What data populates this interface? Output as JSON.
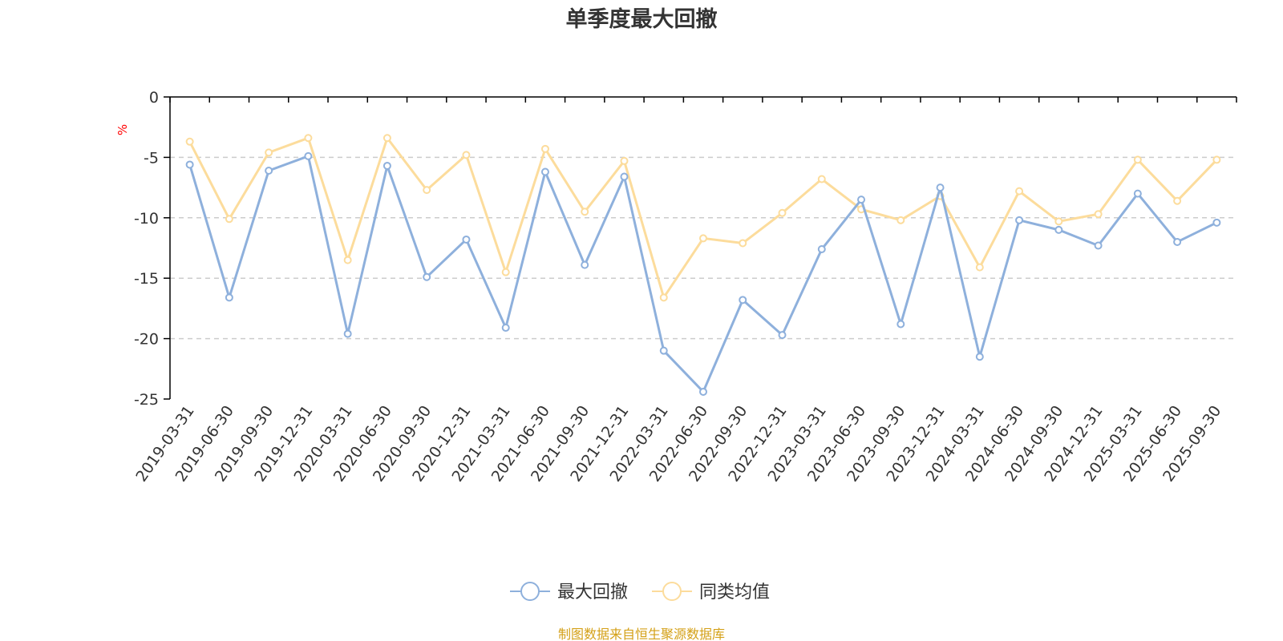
{
  "colors": {
    "series_max_drawdown": "#8eb0dc",
    "series_peer_avg": "#fcdc9c",
    "unit": "#ff0000",
    "source": "#d4a017",
    "grid": "#cccccc",
    "axis": "#000000"
  },
  "source_note": "制图数据来自恒生聚源数据库",
  "chart_data": {
    "type": "line",
    "title": "单季度最大回撤",
    "xlabel": "",
    "ylabel": "%",
    "ylim": [
      -25,
      0
    ],
    "yticks": [
      0,
      -5,
      -10,
      -15,
      -20,
      -25
    ],
    "grid": true,
    "legend_position": "bottom-center",
    "categories": [
      "2019-03-31",
      "2019-06-30",
      "2019-09-30",
      "2019-12-31",
      "2020-03-31",
      "2020-06-30",
      "2020-09-30",
      "2020-12-31",
      "2021-03-31",
      "2021-06-30",
      "2021-09-30",
      "2021-12-31",
      "2022-03-31",
      "2022-06-30",
      "2022-09-30",
      "2022-12-31",
      "2023-03-31",
      "2023-06-30",
      "2023-09-30",
      "2023-12-31",
      "2024-03-31",
      "2024-06-30",
      "2024-09-30",
      "2024-12-31",
      "2025-03-31",
      "2025-06-30",
      "2025-09-30"
    ],
    "series": [
      {
        "name": "最大回撤",
        "color_key": "series_max_drawdown",
        "values": [
          -5.6,
          -16.6,
          -6.1,
          -4.9,
          -19.6,
          -5.7,
          -14.9,
          -11.8,
          -19.1,
          -6.2,
          -13.9,
          -6.6,
          -21.0,
          -24.4,
          -16.8,
          -19.7,
          -12.6,
          -8.5,
          -18.8,
          -7.5,
          -21.5,
          -10.2,
          -11.0,
          -12.3,
          -8.0,
          -12.0,
          -10.4
        ]
      },
      {
        "name": "同类均值",
        "color_key": "series_peer_avg",
        "values": [
          -3.7,
          -10.1,
          -4.6,
          -3.4,
          -13.5,
          -3.4,
          -7.7,
          -4.8,
          -14.5,
          -4.3,
          -9.5,
          -5.3,
          -16.6,
          -11.7,
          -12.1,
          -9.6,
          -6.8,
          -9.3,
          -10.2,
          -8.2,
          -14.1,
          -7.8,
          -10.3,
          -9.7,
          -5.2,
          -8.6,
          -5.2
        ]
      }
    ]
  }
}
